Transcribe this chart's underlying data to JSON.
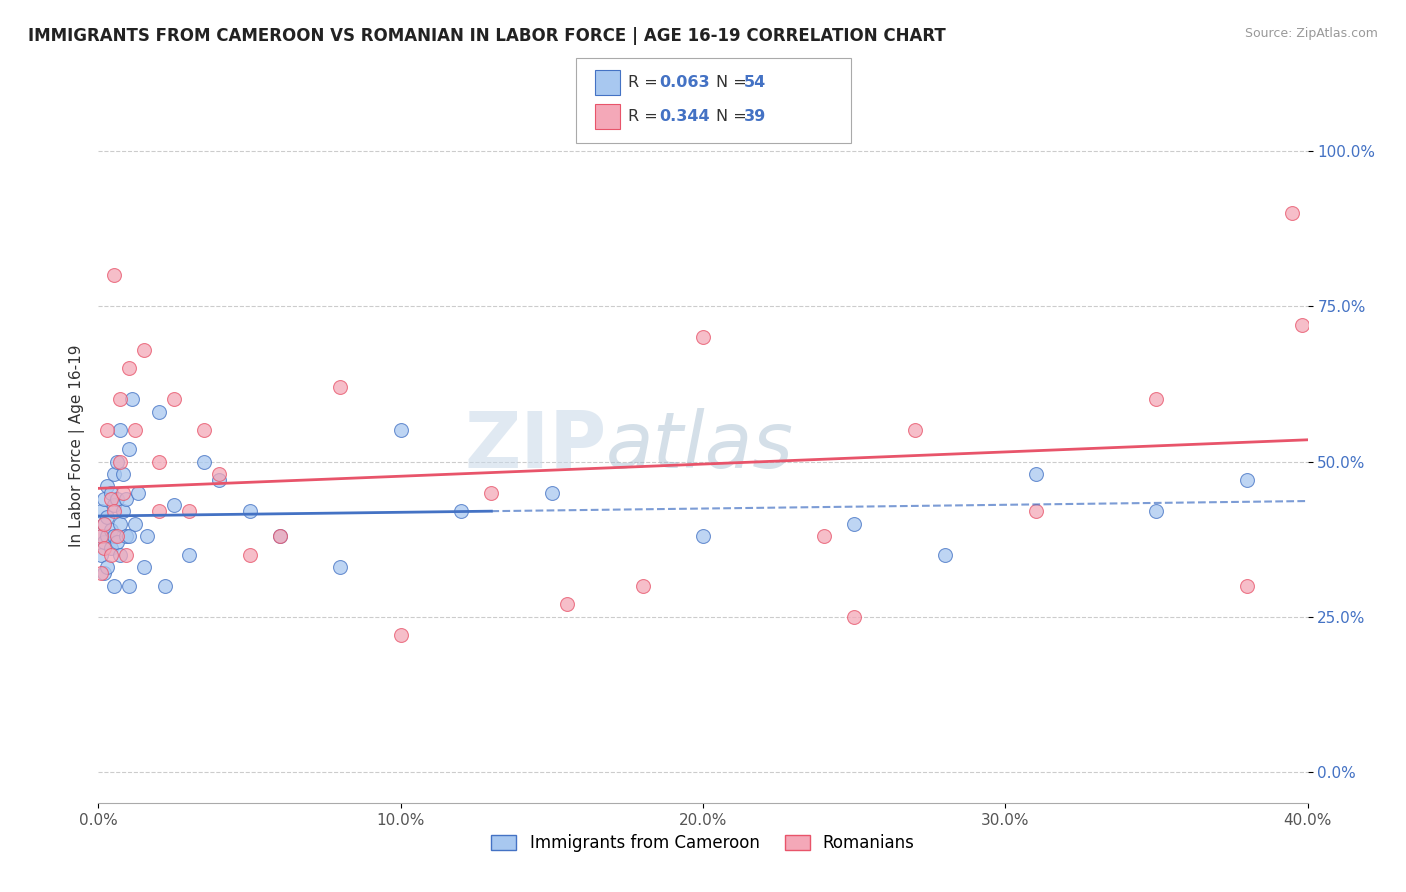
{
  "title": "IMMIGRANTS FROM CAMEROON VS ROMANIAN IN LABOR FORCE | AGE 16-19 CORRELATION CHART",
  "source": "Source: ZipAtlas.com",
  "ylabel": "In Labor Force | Age 16-19",
  "xlim": [
    0.0,
    0.4
  ],
  "ylim": [
    -0.05,
    1.1
  ],
  "yticks": [
    0.0,
    0.25,
    0.5,
    0.75,
    1.0
  ],
  "ytick_labels": [
    "0.0%",
    "25.0%",
    "50.0%",
    "75.0%",
    "100.0%"
  ],
  "xticks": [
    0.0,
    0.1,
    0.2,
    0.3,
    0.4
  ],
  "xtick_labels": [
    "0.0%",
    "10.0%",
    "20.0%",
    "30.0%",
    "40.0%"
  ],
  "color_cameroon": "#a8c8f0",
  "color_romanian": "#f4a8b8",
  "color_line_cameroon": "#4472c4",
  "color_line_romanian": "#e8546a",
  "legend_label1": "Immigrants from Cameroon",
  "legend_label2": "Romanians",
  "watermark_zip": "ZIP",
  "watermark_atlas": "atlas",
  "cameroon_x": [
    0.001,
    0.001,
    0.001,
    0.002,
    0.002,
    0.002,
    0.002,
    0.003,
    0.003,
    0.003,
    0.003,
    0.004,
    0.004,
    0.004,
    0.005,
    0.005,
    0.005,
    0.005,
    0.006,
    0.006,
    0.006,
    0.007,
    0.007,
    0.007,
    0.008,
    0.008,
    0.009,
    0.009,
    0.01,
    0.01,
    0.01,
    0.011,
    0.012,
    0.013,
    0.015,
    0.016,
    0.02,
    0.022,
    0.025,
    0.03,
    0.035,
    0.04,
    0.05,
    0.06,
    0.08,
    0.1,
    0.12,
    0.15,
    0.2,
    0.25,
    0.28,
    0.31,
    0.35,
    0.38
  ],
  "cameroon_y": [
    0.42,
    0.38,
    0.35,
    0.4,
    0.44,
    0.37,
    0.32,
    0.41,
    0.46,
    0.38,
    0.33,
    0.39,
    0.45,
    0.36,
    0.43,
    0.48,
    0.38,
    0.3,
    0.44,
    0.5,
    0.37,
    0.55,
    0.4,
    0.35,
    0.42,
    0.48,
    0.38,
    0.44,
    0.52,
    0.38,
    0.3,
    0.6,
    0.4,
    0.45,
    0.33,
    0.38,
    0.58,
    0.3,
    0.43,
    0.35,
    0.5,
    0.47,
    0.42,
    0.38,
    0.33,
    0.55,
    0.42,
    0.45,
    0.38,
    0.4,
    0.35,
    0.48,
    0.42,
    0.47
  ],
  "romanian_x": [
    0.001,
    0.001,
    0.002,
    0.002,
    0.003,
    0.004,
    0.004,
    0.005,
    0.005,
    0.006,
    0.007,
    0.007,
    0.008,
    0.009,
    0.01,
    0.012,
    0.015,
    0.02,
    0.025,
    0.03,
    0.035,
    0.04,
    0.05,
    0.08,
    0.1,
    0.13,
    0.155,
    0.2,
    0.24,
    0.27,
    0.31,
    0.35,
    0.38,
    0.395,
    0.398,
    0.02,
    0.06,
    0.18,
    0.25
  ],
  "romanian_y": [
    0.38,
    0.32,
    0.4,
    0.36,
    0.55,
    0.35,
    0.44,
    0.8,
    0.42,
    0.38,
    0.6,
    0.5,
    0.45,
    0.35,
    0.65,
    0.55,
    0.68,
    0.5,
    0.6,
    0.42,
    0.55,
    0.48,
    0.35,
    0.62,
    0.22,
    0.45,
    0.27,
    0.7,
    0.38,
    0.55,
    0.42,
    0.6,
    0.3,
    0.9,
    0.72,
    0.42,
    0.38,
    0.3,
    0.25
  ]
}
